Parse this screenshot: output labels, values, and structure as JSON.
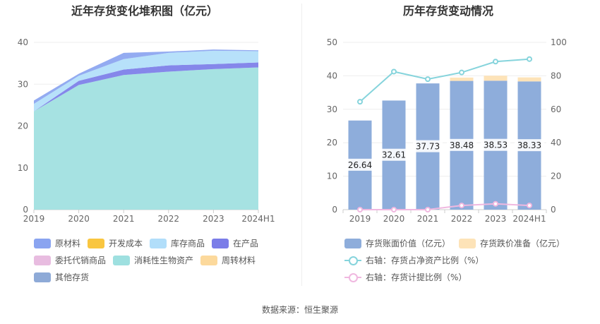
{
  "left_title": "近年存货变化堆积图（亿元）",
  "right_title": "历年存货变动情况",
  "source": "数据来源：恒生聚源",
  "chart_data": [
    {
      "type": "area",
      "title": "近年存货变化堆积图（亿元）",
      "categories": [
        "2019",
        "2020",
        "2021",
        "2022",
        "2023",
        "2024H1"
      ],
      "ylim": [
        0,
        40
      ],
      "yticks": [
        0,
        10,
        20,
        30,
        40
      ],
      "series": [
        {
          "name": "原材料",
          "color": "#8aa4f0",
          "values": [
            0.8,
            0.5,
            1.5,
            0.3,
            0.3,
            0.2
          ]
        },
        {
          "name": "开发成本",
          "color": "#f9c640",
          "values": [
            0,
            0,
            0,
            0,
            0,
            0
          ]
        },
        {
          "name": "库存商品",
          "color": "#b1defa",
          "values": [
            1.8,
            1.2,
            2.5,
            3.0,
            3.2,
            2.7
          ]
        },
        {
          "name": "在产品",
          "color": "#7b7de8",
          "values": [
            0,
            1.0,
            1.3,
            1.5,
            1.2,
            1.2
          ]
        },
        {
          "name": "委托代销商品",
          "color": "#e8bce0",
          "values": [
            0,
            0,
            0,
            0,
            0,
            0
          ]
        },
        {
          "name": "消耗性生物资产",
          "color": "#9ee0e0",
          "values": [
            23.5,
            29.8,
            32.2,
            33.0,
            33.6,
            34.0
          ]
        },
        {
          "name": "周转材料",
          "color": "#fcd99c",
          "values": [
            0,
            0,
            0,
            0,
            0,
            0
          ]
        },
        {
          "name": "其他存货",
          "color": "#8eaad7",
          "values": [
            0,
            0,
            0,
            0,
            0,
            0
          ]
        }
      ],
      "legend": "bottom"
    },
    {
      "type": "bar",
      "title": "历年存货变动情况",
      "categories": [
        "2019",
        "2020",
        "2021",
        "2022",
        "2023",
        "2024H1"
      ],
      "ylim": [
        0,
        50
      ],
      "yticks": [
        0,
        10,
        20,
        30,
        40,
        50
      ],
      "y2lim": [
        0,
        100
      ],
      "y2ticks": [
        0,
        20,
        40,
        60,
        80,
        100
      ],
      "series": [
        {
          "name": "存货账面价值（亿元）",
          "color": "#8eaddb",
          "values": [
            26.64,
            32.61,
            37.73,
            38.48,
            38.53,
            38.33
          ],
          "labels": [
            "26.64",
            "32.61",
            "37.73",
            "38.48",
            "38.53",
            "38.33"
          ]
        },
        {
          "name": "存货跌价准备（亿元）",
          "color": "#fde3b8",
          "values": [
            0,
            0,
            0,
            1.0,
            1.5,
            1.2
          ]
        },
        {
          "name": "右轴：存货占净资产比例（%）",
          "color": "#86d4dc",
          "axis": "right",
          "values": [
            64.5,
            82.5,
            78,
            82,
            88.5,
            90
          ]
        },
        {
          "name": "右轴：存货计提比例（%）",
          "color": "#f0b8e0",
          "axis": "right",
          "values": [
            0,
            0,
            0,
            2.5,
            3.5,
            2.5
          ]
        }
      ],
      "legend": "bottom"
    }
  ]
}
